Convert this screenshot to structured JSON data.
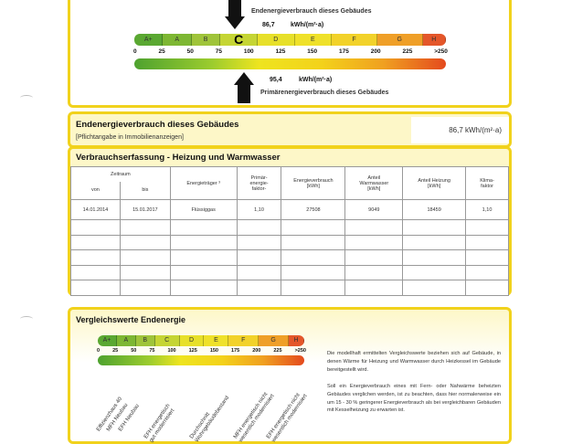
{
  "scale": {
    "classes": [
      "A+",
      "A",
      "B",
      "C",
      "D",
      "E",
      "F",
      "G",
      "H"
    ],
    "ticks": [
      "0",
      "25",
      "50",
      "75",
      "100",
      "125",
      "150",
      "175",
      "200",
      "225",
      ">250"
    ],
    "class_colors": [
      "#5aa832",
      "#7db733",
      "#9fc43a",
      "#c5d534",
      "#e7e02a",
      "#efe12a",
      "#f2d22a",
      "#ef9f28",
      "#e4562a"
    ],
    "selected_class": "C"
  },
  "top": {
    "end_label": "Endenergieverbrauch dieses Gebäudes",
    "end_value": "86,7",
    "end_unit": "kWh/(m²·a)",
    "primary_value": "95,4",
    "primary_unit": "kWh/(m²·a)",
    "primary_label": "Primärenergieverbrauch dieses Gebäudes"
  },
  "endenergie_box": {
    "title": "Endenergieverbrauch dieses Gebäudes",
    "subtitle": "[Pflichtangabe in Immobilienanzeigen]",
    "value": "86,7 kWh/(m²·a)"
  },
  "verbrauch": {
    "title": "Verbrauchserfassung - Heizung und Warmwasser",
    "headers": {
      "zeitraum": "Zeitraum",
      "von": "von",
      "bis": "bis",
      "energietraeger": "Energieträger ³",
      "primaer": "Primär-\nenergie-\nfaktor-",
      "energieverbrauch": "Energieverbrauch\n[kWh]",
      "warmwasser": "Anteil\nWarmwasser\n[kWh]",
      "heizung": "Anteil Heizung\n[kWh]",
      "klima": "Klima-\nfaktor"
    },
    "rows": [
      [
        "14.01.2014",
        "15.01.2017",
        "Flüssiggas",
        "1,10",
        "27508",
        "9049",
        "18459",
        "1,10"
      ],
      [
        "",
        "",
        "",
        "",
        "",
        "",
        "",
        ""
      ],
      [
        "",
        "",
        "",
        "",
        "",
        "",
        "",
        ""
      ],
      [
        "",
        "",
        "",
        "",
        "",
        "",
        "",
        ""
      ],
      [
        "",
        "",
        "",
        "",
        "",
        "",
        "",
        ""
      ],
      [
        "",
        "",
        "",
        "",
        "",
        "",
        "",
        ""
      ]
    ]
  },
  "vergleich": {
    "title": "Vergleichswerte Endenergie",
    "labels": [
      "Effizienzhaus 40",
      "MFH Neubau",
      "EFH Neubau",
      "EFH energetisch\ngut modernisiert",
      "Durchschnitt\nWohngebäudebestand",
      "MFH energetisch nicht\nwesentlich modernisiert",
      "EFH energetisch nicht\nwesentlich modernisiert"
    ],
    "text1": "Die modellhaft ermittelten Vergleichswerte beziehen sich auf Gebäude, in denen Wärme für Heizung und Warmwasser durch Heizkessel im Gebäude bereitgestellt wird.",
    "text2": "Soll ein Energieverbrauch eines mit Fern- oder Nahwärme beheizten Gebäudes verglichen werden, ist zu beachten, dass hier normalerweise ein um 15 - 30 % geringerer Energieverbrauch als bei vergleichbaren Gebäuden mit Kesselheizung zu erwarten ist."
  }
}
